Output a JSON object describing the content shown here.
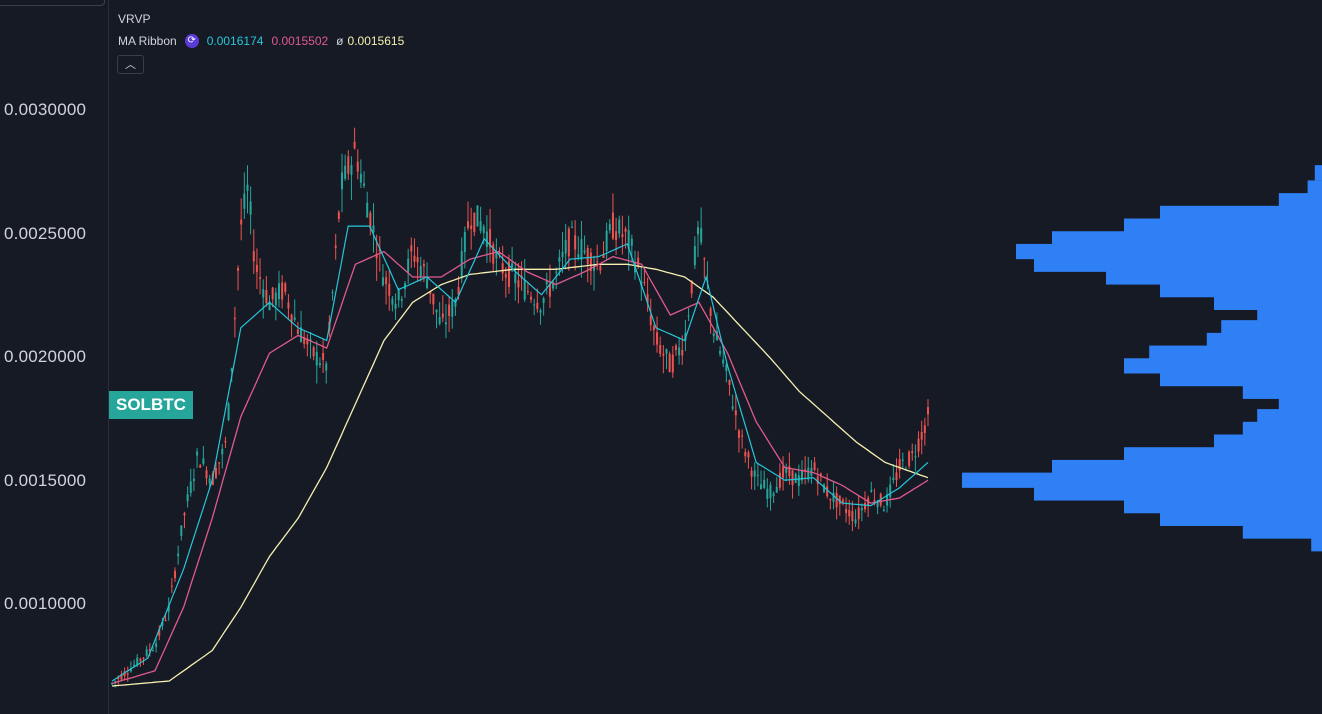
{
  "symbol": "SOLBTC",
  "legend": {
    "vrvp_label": "VRVP",
    "ma_label": "MA Ribbon",
    "ma_values": [
      "0.0016174",
      "0.0015502",
      "0.0015615"
    ],
    "ma_separator": "ø"
  },
  "colors": {
    "background": "#161a25",
    "up": "#26a69a",
    "down": "#ef5350",
    "ma_fast": "#26c6da",
    "ma_mid": "#e05a8c",
    "ma_slow": "#f5f0b0",
    "volume_profile": "#2f7ff5",
    "text": "#d1d4dc"
  },
  "icons": [
    "ma-ribbon-icon",
    "chevron-up-icon"
  ],
  "chart_data": {
    "type": "candlestick",
    "ytick_labels": [
      "0.0030000",
      "0.0025000",
      "0.0020000",
      "0.0015000",
      "0.0010000"
    ],
    "ylim": [
      0.00063,
      0.00344
    ],
    "current_price_tag": "SOLBTC",
    "price_path": [
      [
        0,
        0.00075
      ],
      [
        3,
        0.00082
      ],
      [
        6,
        0.0009
      ],
      [
        8,
        0.00105
      ],
      [
        10,
        0.0014
      ],
      [
        12,
        0.00165
      ],
      [
        14,
        0.00155
      ],
      [
        16,
        0.0017
      ],
      [
        18,
        0.00255
      ],
      [
        19,
        0.0027
      ],
      [
        20,
        0.0024
      ],
      [
        22,
        0.00225
      ],
      [
        24,
        0.0023
      ],
      [
        26,
        0.00215
      ],
      [
        28,
        0.00205
      ],
      [
        30,
        0.002
      ],
      [
        32,
        0.0027
      ],
      [
        34,
        0.00285
      ],
      [
        36,
        0.0026
      ],
      [
        38,
        0.00235
      ],
      [
        40,
        0.00225
      ],
      [
        42,
        0.00245
      ],
      [
        44,
        0.00235
      ],
      [
        46,
        0.00215
      ],
      [
        48,
        0.00225
      ],
      [
        50,
        0.0026
      ],
      [
        52,
        0.00255
      ],
      [
        54,
        0.0024
      ],
      [
        56,
        0.00235
      ],
      [
        58,
        0.0023
      ],
      [
        60,
        0.00225
      ],
      [
        62,
        0.00235
      ],
      [
        64,
        0.0025
      ],
      [
        66,
        0.00245
      ],
      [
        68,
        0.0024
      ],
      [
        70,
        0.00255
      ],
      [
        72,
        0.0025
      ],
      [
        74,
        0.00235
      ],
      [
        76,
        0.0021
      ],
      [
        78,
        0.002
      ],
      [
        80,
        0.0021
      ],
      [
        82,
        0.00255
      ],
      [
        84,
        0.00215
      ],
      [
        86,
        0.00195
      ],
      [
        88,
        0.0017
      ],
      [
        90,
        0.00155
      ],
      [
        92,
        0.0015
      ],
      [
        94,
        0.00158
      ],
      [
        96,
        0.00155
      ],
      [
        98,
        0.0016
      ],
      [
        100,
        0.0015
      ],
      [
        102,
        0.00145
      ],
      [
        104,
        0.0014
      ],
      [
        106,
        0.0015
      ],
      [
        108,
        0.00145
      ],
      [
        110,
        0.0016
      ],
      [
        112,
        0.00165
      ],
      [
        114,
        0.0018
      ]
    ],
    "ma_fast_path": [
      [
        0,
        0.00076
      ],
      [
        5,
        0.00085
      ],
      [
        10,
        0.0012
      ],
      [
        14,
        0.00155
      ],
      [
        18,
        0.00215
      ],
      [
        22,
        0.00225
      ],
      [
        26,
        0.00215
      ],
      [
        30,
        0.0021
      ],
      [
        33,
        0.00255
      ],
      [
        36,
        0.00255
      ],
      [
        40,
        0.0023
      ],
      [
        44,
        0.00235
      ],
      [
        48,
        0.00225
      ],
      [
        52,
        0.0025
      ],
      [
        56,
        0.00238
      ],
      [
        60,
        0.00228
      ],
      [
        64,
        0.00242
      ],
      [
        68,
        0.00243
      ],
      [
        72,
        0.00248
      ],
      [
        76,
        0.00215
      ],
      [
        80,
        0.0021
      ],
      [
        83,
        0.00235
      ],
      [
        86,
        0.002
      ],
      [
        90,
        0.00162
      ],
      [
        94,
        0.00155
      ],
      [
        98,
        0.00156
      ],
      [
        102,
        0.00146
      ],
      [
        106,
        0.00145
      ],
      [
        110,
        0.00152
      ],
      [
        114,
        0.00162
      ]
    ],
    "ma_mid_path": [
      [
        0,
        0.00075
      ],
      [
        6,
        0.0008
      ],
      [
        10,
        0.00105
      ],
      [
        14,
        0.0014
      ],
      [
        18,
        0.0018
      ],
      [
        22,
        0.00205
      ],
      [
        26,
        0.00212
      ],
      [
        30,
        0.00207
      ],
      [
        34,
        0.0024
      ],
      [
        38,
        0.00245
      ],
      [
        42,
        0.00235
      ],
      [
        46,
        0.00235
      ],
      [
        50,
        0.00242
      ],
      [
        54,
        0.00245
      ],
      [
        58,
        0.00237
      ],
      [
        62,
        0.00232
      ],
      [
        66,
        0.00237
      ],
      [
        70,
        0.00243
      ],
      [
        74,
        0.0024
      ],
      [
        78,
        0.0022
      ],
      [
        82,
        0.00225
      ],
      [
        86,
        0.00205
      ],
      [
        90,
        0.00178
      ],
      [
        94,
        0.0016
      ],
      [
        98,
        0.00158
      ],
      [
        102,
        0.00153
      ],
      [
        106,
        0.00146
      ],
      [
        110,
        0.00148
      ],
      [
        114,
        0.00155
      ]
    ],
    "ma_slow_path": [
      [
        0,
        0.00074
      ],
      [
        8,
        0.00076
      ],
      [
        14,
        0.00088
      ],
      [
        18,
        0.00105
      ],
      [
        22,
        0.00125
      ],
      [
        26,
        0.0014
      ],
      [
        30,
        0.0016
      ],
      [
        34,
        0.00185
      ],
      [
        38,
        0.0021
      ],
      [
        42,
        0.00225
      ],
      [
        46,
        0.00232
      ],
      [
        50,
        0.00236
      ],
      [
        56,
        0.00238
      ],
      [
        62,
        0.00238
      ],
      [
        68,
        0.0024
      ],
      [
        72,
        0.0024
      ],
      [
        76,
        0.00238
      ],
      [
        80,
        0.00235
      ],
      [
        84,
        0.00227
      ],
      [
        88,
        0.00215
      ],
      [
        92,
        0.00203
      ],
      [
        96,
        0.0019
      ],
      [
        100,
        0.0018
      ],
      [
        104,
        0.0017
      ],
      [
        108,
        0.00162
      ],
      [
        112,
        0.00158
      ],
      [
        114,
        0.00156
      ]
    ],
    "volume_profile": [
      [
        0.00276,
        0.02
      ],
      [
        0.0027,
        0.04
      ],
      [
        0.00265,
        0.12
      ],
      [
        0.0026,
        0.45
      ],
      [
        0.00255,
        0.55
      ],
      [
        0.0025,
        0.75
      ],
      [
        0.00245,
        0.85
      ],
      [
        0.0024,
        0.8
      ],
      [
        0.00235,
        0.6
      ],
      [
        0.0023,
        0.45
      ],
      [
        0.00225,
        0.3
      ],
      [
        0.0022,
        0.18
      ],
      [
        0.00215,
        0.28
      ],
      [
        0.0021,
        0.32
      ],
      [
        0.00205,
        0.48
      ],
      [
        0.002,
        0.55
      ],
      [
        0.00195,
        0.45
      ],
      [
        0.0019,
        0.22
      ],
      [
        0.00185,
        0.12
      ],
      [
        0.0018,
        0.18
      ],
      [
        0.00175,
        0.22
      ],
      [
        0.0017,
        0.3
      ],
      [
        0.00165,
        0.55
      ],
      [
        0.0016,
        0.75
      ],
      [
        0.00155,
        1.0
      ],
      [
        0.0015,
        0.8
      ],
      [
        0.00145,
        0.55
      ],
      [
        0.0014,
        0.45
      ],
      [
        0.00135,
        0.22
      ],
      [
        0.0013,
        0.03
      ]
    ]
  }
}
